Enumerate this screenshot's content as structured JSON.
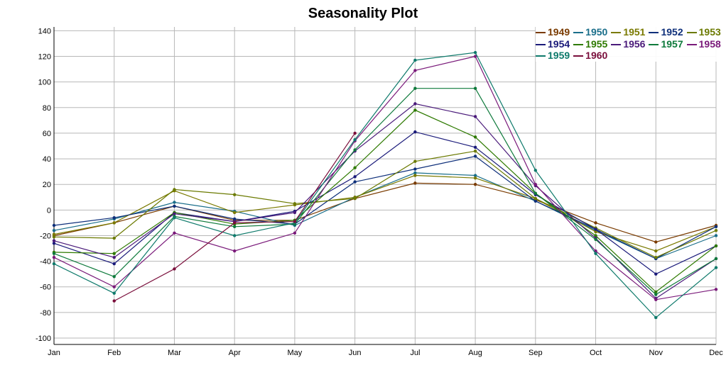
{
  "chart_data": {
    "type": "line",
    "title": "Seasonality Plot",
    "xlabel": "",
    "ylabel": "",
    "x": [
      "Jan",
      "Feb",
      "Mar",
      "Apr",
      "May",
      "Jun",
      "Jul",
      "Aug",
      "Sep",
      "Oct",
      "Nov",
      "Dec"
    ],
    "ylim": [
      -105,
      143
    ],
    "yticks": [
      -100,
      -80,
      -60,
      -40,
      -20,
      0,
      20,
      40,
      60,
      80,
      100,
      120,
      140
    ],
    "grid": true,
    "legend": "top-right",
    "series": [
      {
        "name": "1949",
        "color": "#7a3b00",
        "values": [
          -20,
          -10,
          3,
          -8,
          -8,
          9,
          21,
          20,
          8,
          -10,
          -25,
          -12
        ]
      },
      {
        "name": "1950",
        "color": "#1a6e8a",
        "values": [
          -16,
          -7,
          6,
          -1,
          -12,
          10,
          29,
          27,
          7,
          -16,
          -38,
          -20
        ]
      },
      {
        "name": "1951",
        "color": "#7a7a00",
        "values": [
          -19,
          -10,
          15,
          -2,
          4,
          10,
          27,
          25,
          9,
          -17,
          -32,
          -13
        ]
      },
      {
        "name": "1952",
        "color": "#0e2f7a",
        "values": [
          -12,
          -6,
          3,
          -7,
          -11,
          22,
          32,
          42,
          7,
          -15,
          -38,
          -13
        ]
      },
      {
        "name": "1953",
        "color": "#6b7a00",
        "values": [
          -21,
          -22,
          16,
          12,
          5,
          9,
          38,
          46,
          9,
          -14,
          -37,
          -16
        ]
      },
      {
        "name": "1954",
        "color": "#1a1a7a",
        "values": [
          -26,
          -42,
          -2,
          -9,
          -1,
          26,
          61,
          49,
          12,
          -15,
          -50,
          -28
        ]
      },
      {
        "name": "1955",
        "color": "#2e7a00",
        "values": [
          -33,
          -34,
          -2,
          -11,
          -8,
          33,
          78,
          57,
          13,
          -20,
          -64,
          -28
        ]
      },
      {
        "name": "1956",
        "color": "#4a1a7a",
        "values": [
          -24,
          -37,
          -3,
          -9,
          -2,
          46,
          83,
          73,
          19,
          -22,
          -69,
          -38
        ]
      },
      {
        "name": "1957",
        "color": "#0e7a3b",
        "values": [
          -34,
          -52,
          -5,
          -13,
          -11,
          47,
          95,
          95,
          13,
          -23,
          -66,
          -38
        ]
      },
      {
        "name": "1958",
        "color": "#7a1a7a",
        "values": [
          -37,
          -60,
          -18,
          -32,
          -18,
          54,
          109,
          120,
          20,
          -32,
          -70,
          -62
        ]
      },
      {
        "name": "1959",
        "color": "#0e7a6b",
        "values": [
          -42,
          -65,
          -6,
          -20,
          -10,
          55,
          117,
          123,
          31,
          -34,
          -84,
          -45
        ]
      },
      {
        "name": "1960",
        "color": "#7a0e3b",
        "values": [
          null,
          -71,
          -46,
          -10,
          -9,
          60,
          null,
          null,
          null,
          null,
          null,
          null
        ]
      }
    ]
  }
}
